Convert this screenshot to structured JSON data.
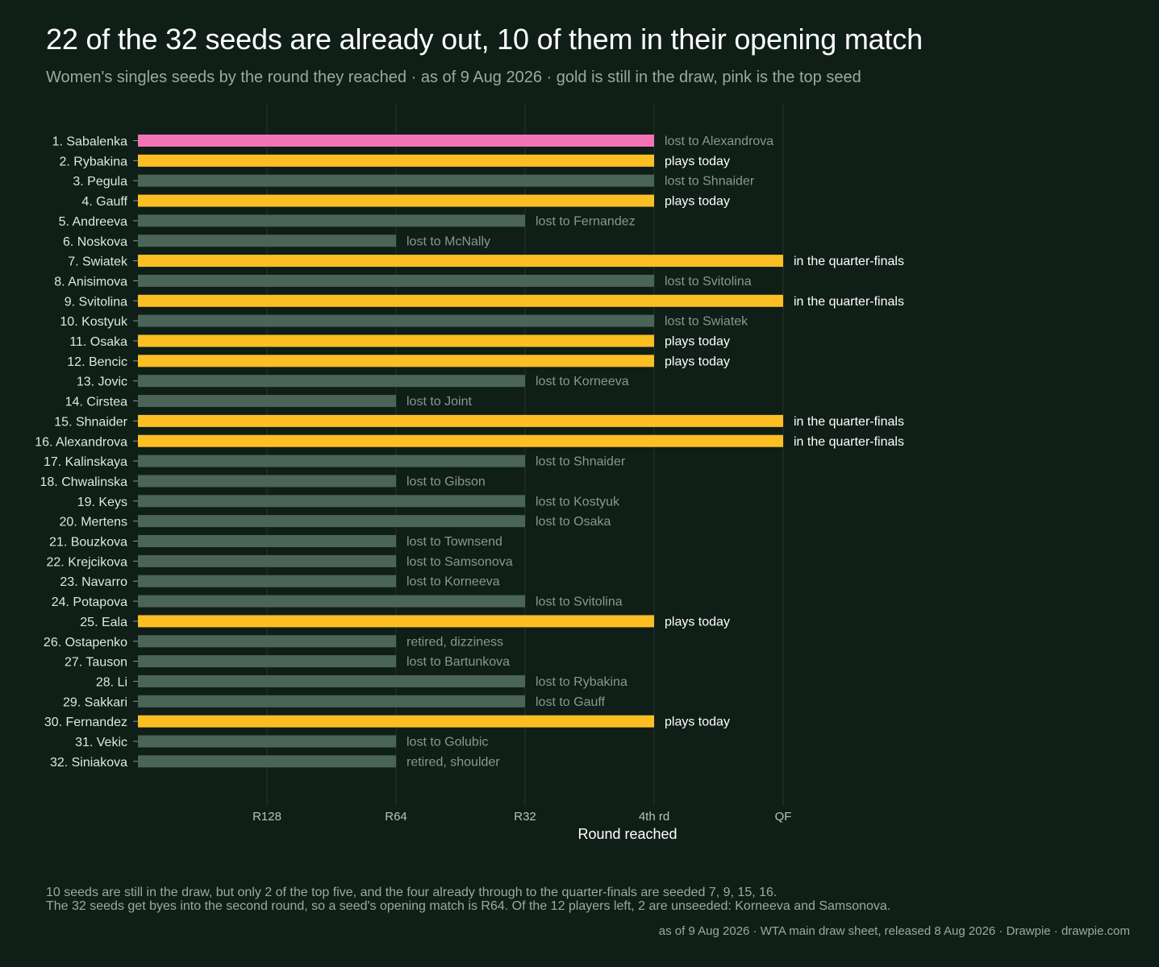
{
  "title": "22 of the 32 seeds are already out, 10 of them in their opening match",
  "subtitle": "Women's singles seeds by the round they reached · as of 9 Aug 2026 · gold is still in the draw, pink is the top seed",
  "footnotes": [
    "10 seeds are still in the draw, but only 2 of the top five, and the four already through to the quarter-finals are seeded 7, 9, 15, 16.",
    "The 32 seeds get byes into the second round, so a seed's opening match is R64. Of the 12 players left, 2 are unseeded: Korneeva and Samsonova."
  ],
  "source": "as of 9 Aug 2026  ·  WTA main draw sheet, released 8 Aug 2026  ·  Drawpie · drawpie.com",
  "colors": {
    "background": "#0f1e17",
    "out": "#4a6457",
    "active": "#fbbf24",
    "top_seed": "#f472b6",
    "label_out": "#8a9790",
    "label_active": "#ffffff",
    "grid": "#24342c"
  },
  "chart_data": {
    "type": "bar",
    "orientation": "horizontal",
    "xlabel": "Round reached",
    "x_ticks": [
      "R128",
      "R64",
      "R32",
      "4th rd",
      "QF"
    ],
    "grid": true,
    "rows": [
      {
        "label": "1. Sabalenka",
        "round": "4th rd",
        "status": "top_seed",
        "note": "lost to Alexandrova"
      },
      {
        "label": "2. Rybakina",
        "round": "4th rd",
        "status": "active",
        "note": "plays today"
      },
      {
        "label": "3. Pegula",
        "round": "4th rd",
        "status": "out",
        "note": "lost to Shnaider"
      },
      {
        "label": "4. Gauff",
        "round": "4th rd",
        "status": "active",
        "note": "plays today"
      },
      {
        "label": "5. Andreeva",
        "round": "R32",
        "status": "out",
        "note": "lost to Fernandez"
      },
      {
        "label": "6. Noskova",
        "round": "R64",
        "status": "out",
        "note": "lost to McNally"
      },
      {
        "label": "7. Swiatek",
        "round": "QF",
        "status": "active",
        "note": "in the quarter-finals"
      },
      {
        "label": "8. Anisimova",
        "round": "4th rd",
        "status": "out",
        "note": "lost to Svitolina"
      },
      {
        "label": "9. Svitolina",
        "round": "QF",
        "status": "active",
        "note": "in the quarter-finals"
      },
      {
        "label": "10. Kostyuk",
        "round": "4th rd",
        "status": "out",
        "note": "lost to Swiatek"
      },
      {
        "label": "11. Osaka",
        "round": "4th rd",
        "status": "active",
        "note": "plays today"
      },
      {
        "label": "12. Bencic",
        "round": "4th rd",
        "status": "active",
        "note": "plays today"
      },
      {
        "label": "13. Jovic",
        "round": "R32",
        "status": "out",
        "note": "lost to Korneeva"
      },
      {
        "label": "14. Cirstea",
        "round": "R64",
        "status": "out",
        "note": "lost to Joint"
      },
      {
        "label": "15. Shnaider",
        "round": "QF",
        "status": "active",
        "note": "in the quarter-finals"
      },
      {
        "label": "16. Alexandrova",
        "round": "QF",
        "status": "active",
        "note": "in the quarter-finals"
      },
      {
        "label": "17. Kalinskaya",
        "round": "R32",
        "status": "out",
        "note": "lost to Shnaider"
      },
      {
        "label": "18. Chwalinska",
        "round": "R64",
        "status": "out",
        "note": "lost to Gibson"
      },
      {
        "label": "19. Keys",
        "round": "R32",
        "status": "out",
        "note": "lost to Kostyuk"
      },
      {
        "label": "20. Mertens",
        "round": "R32",
        "status": "out",
        "note": "lost to Osaka"
      },
      {
        "label": "21. Bouzkova",
        "round": "R64",
        "status": "out",
        "note": "lost to Townsend"
      },
      {
        "label": "22. Krejcikova",
        "round": "R64",
        "status": "out",
        "note": "lost to Samsonova"
      },
      {
        "label": "23. Navarro",
        "round": "R64",
        "status": "out",
        "note": "lost to Korneeva"
      },
      {
        "label": "24. Potapova",
        "round": "R32",
        "status": "out",
        "note": "lost to Svitolina"
      },
      {
        "label": "25. Eala",
        "round": "4th rd",
        "status": "active",
        "note": "plays today"
      },
      {
        "label": "26. Ostapenko",
        "round": "R64",
        "status": "out",
        "note": "retired, dizziness"
      },
      {
        "label": "27. Tauson",
        "round": "R64",
        "status": "out",
        "note": "lost to Bartunkova"
      },
      {
        "label": "28. Li",
        "round": "R32",
        "status": "out",
        "note": "lost to Rybakina"
      },
      {
        "label": "29. Sakkari",
        "round": "R32",
        "status": "out",
        "note": "lost to Gauff"
      },
      {
        "label": "30. Fernandez",
        "round": "4th rd",
        "status": "active",
        "note": "plays today"
      },
      {
        "label": "31. Vekic",
        "round": "R64",
        "status": "out",
        "note": "lost to Golubic"
      },
      {
        "label": "32. Siniakova",
        "round": "R64",
        "status": "out",
        "note": "retired, shoulder"
      }
    ]
  }
}
